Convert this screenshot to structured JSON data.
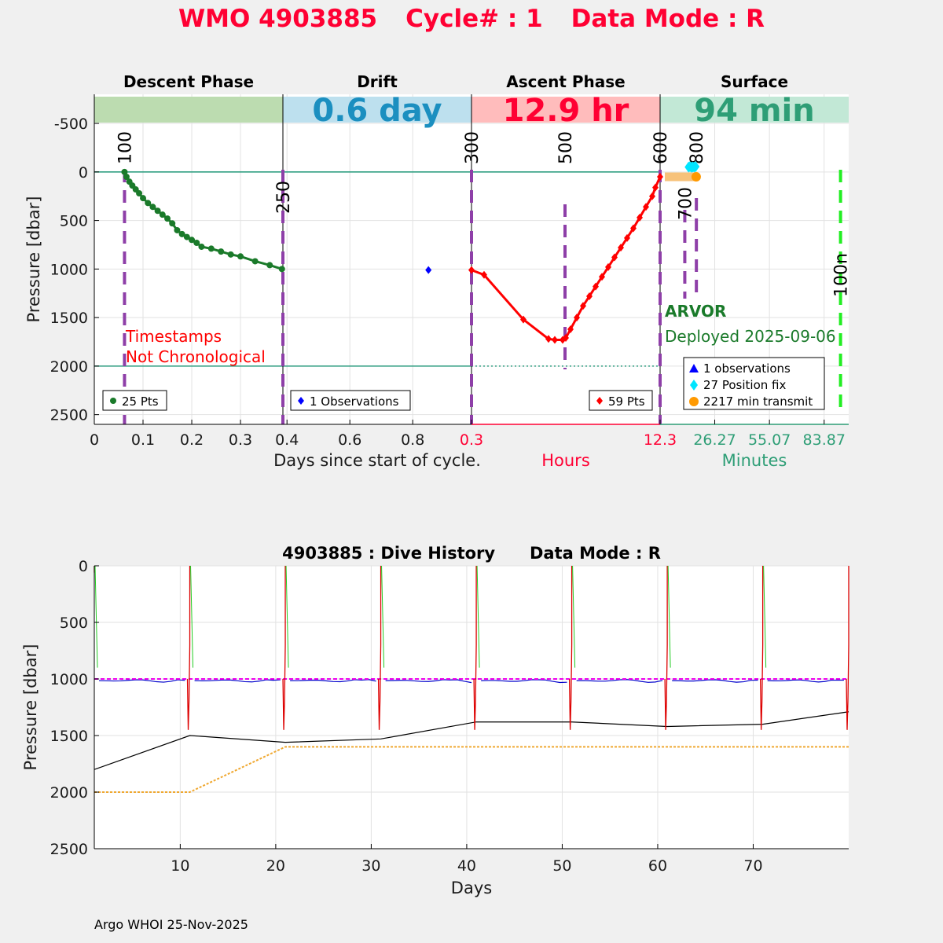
{
  "title": {
    "wmo": "WMO 4903885",
    "cycle": "Cycle# : 1",
    "mode": "Data Mode : R",
    "color": "#ff0033"
  },
  "footer": "Argo WHOI 25-Nov-2025",
  "chart_data": [
    {
      "type": "line",
      "name": "cycle-profile",
      "ylabel": "Pressure [dbar]",
      "ylim": [
        2600,
        -800
      ],
      "yticks": [
        -500,
        0,
        500,
        1000,
        1500,
        2000,
        2500
      ],
      "phases": {
        "descent": {
          "label": "Descent Phase",
          "color": "#bcdcb0",
          "xlabel": "Days since start of cycle.",
          "xticks": [
            "0",
            "0.1",
            "0.2",
            "0.3"
          ],
          "xlim": [
            0,
            0.387
          ],
          "xtick_values": [
            0,
            0.1,
            0.2,
            0.3
          ],
          "legend": "25 Pts",
          "series_color": "#1a7a2a",
          "points": [
            [
              0.062,
              0
            ],
            [
              0.066,
              50
            ],
            [
              0.072,
              100
            ],
            [
              0.078,
              140
            ],
            [
              0.085,
              180
            ],
            [
              0.092,
              220
            ],
            [
              0.1,
              270
            ],
            [
              0.11,
              320
            ],
            [
              0.12,
              360
            ],
            [
              0.13,
              400
            ],
            [
              0.14,
              440
            ],
            [
              0.15,
              480
            ],
            [
              0.16,
              530
            ],
            [
              0.17,
              600
            ],
            [
              0.18,
              640
            ],
            [
              0.19,
              670
            ],
            [
              0.2,
              700
            ],
            [
              0.21,
              730
            ],
            [
              0.22,
              770
            ],
            [
              0.24,
              790
            ],
            [
              0.26,
              820
            ],
            [
              0.28,
              850
            ],
            [
              0.3,
              870
            ],
            [
              0.33,
              920
            ],
            [
              0.36,
              960
            ],
            [
              0.385,
              1000
            ]
          ],
          "vlines": [
            {
              "x": 0.062,
              "label": "100"
            }
          ],
          "note": [
            "Timestamps",
            "Not Chronological"
          ],
          "note_color": "#ff0000"
        },
        "drift": {
          "label": "Drift",
          "color": "#bde0ee",
          "value": "0.6 day",
          "value_color": "#1b8fc0",
          "xticks": [
            "0.4",
            "0.6",
            "0.8"
          ],
          "xlim": [
            0.387,
            0.987
          ],
          "xtick_values": [
            0.4,
            0.6,
            0.8
          ],
          "legend": "1 Observations",
          "series_color": "#0000ff",
          "points": [
            [
              0.85,
              1010
            ]
          ],
          "vlines": [
            {
              "x": 0.387,
              "label": "250"
            }
          ]
        },
        "ascent": {
          "label": "Ascent Phase",
          "color": "#ffbcbc",
          "value": "12.9 hr",
          "value_color": "#ff0033",
          "xlabel": "Hours",
          "xlabel_color": "#ff0033",
          "xticks": [
            "0.3",
            "12.3"
          ],
          "xlim": [
            0.3,
            12.3
          ],
          "xtick_values": [
            0.3,
            12.3
          ],
          "legend": "59 Pts",
          "series_color": "#ff0000",
          "points": [
            [
              0.3,
              1010
            ],
            [
              1.1,
              1060
            ],
            [
              3.6,
              1520
            ],
            [
              5.2,
              1720
            ],
            [
              5.6,
              1730
            ],
            [
              6.1,
              1730
            ],
            [
              6.3,
              1710
            ],
            [
              6.6,
              1620
            ],
            [
              7.0,
              1500
            ],
            [
              7.4,
              1380
            ],
            [
              7.8,
              1280
            ],
            [
              8.2,
              1180
            ],
            [
              8.6,
              1080
            ],
            [
              9.0,
              980
            ],
            [
              9.4,
              880
            ],
            [
              9.8,
              780
            ],
            [
              10.2,
              680
            ],
            [
              10.6,
              580
            ],
            [
              11.0,
              470
            ],
            [
              11.4,
              360
            ],
            [
              11.8,
              250
            ],
            [
              12.0,
              160
            ],
            [
              12.3,
              50
            ]
          ],
          "vlines": [
            {
              "x": 0.3,
              "label": "300"
            },
            {
              "x": 6.25,
              "label": "500"
            },
            {
              "x": 12.3,
              "label": "600"
            }
          ]
        },
        "surface": {
          "label": "Surface",
          "color": "#c2e8d6",
          "value": "94 min",
          "value_color": "#2e9e76",
          "xlabel": "Minutes",
          "xlabel_color": "#2e9e76",
          "xticks": [
            "26.27",
            "55.07",
            "83.87"
          ],
          "xlim": [
            -2.5,
            96.8
          ],
          "xtick_values": [
            26.27,
            55.07,
            83.87
          ],
          "vlines": [
            {
              "x": 10.5,
              "label": "700"
            },
            {
              "x": 16.6,
              "label": "800"
            },
            {
              "x": 92.5,
              "label": "100n"
            }
          ],
          "float": "ARVOR",
          "deployed": "Deployed 2025-09-06",
          "float_color": "#1a7a2a",
          "legend": [
            {
              "label": "1 observations",
              "color": "#0000ff",
              "marker": "triangle"
            },
            {
              "label": "27 Position fix",
              "color": "#00e5ff",
              "marker": "diamond"
            },
            {
              "label": "2217 min transmit",
              "color": "#ff9900",
              "marker": "circle"
            }
          ],
          "transmit_bar": {
            "x0": 0,
            "x1": 16.5,
            "y": 50,
            "color": "#f7c27a"
          },
          "position_fixes": [
            [
              12.5,
              -50
            ],
            [
              13.2,
              -55
            ],
            [
              14.0,
              -48
            ],
            [
              14.7,
              -52
            ],
            [
              15.4,
              -50
            ],
            [
              16.2,
              -55
            ]
          ]
        }
      }
    },
    {
      "type": "line",
      "name": "dive-history",
      "title": "4903885 : Dive History      Data Mode : R",
      "xlabel": "Days",
      "ylabel": "Pressure [dbar]",
      "xlim": [
        1,
        80
      ],
      "ylim": [
        2500,
        0
      ],
      "xticks": [
        10,
        20,
        30,
        40,
        50,
        60,
        70
      ],
      "yticks": [
        0,
        500,
        1000,
        1500,
        2000,
        2500
      ],
      "park_pressure": 1000,
      "series": [
        {
          "name": "",
          "color": "#000000",
          "points": [
            [
              1,
              1800
            ],
            [
              11,
              1500
            ],
            [
              21,
              1560
            ],
            [
              31,
              1530
            ],
            [
              41,
              1380
            ],
            [
              51,
              1380
            ],
            [
              61,
              1420
            ],
            [
              71,
              1400
            ],
            [
              80,
              1290
            ]
          ]
        },
        {
          "name": "",
          "color": "#f0a830",
          "dashed": true,
          "points": [
            [
              1,
              2000
            ],
            [
              11,
              2000
            ],
            [
              21,
              1600
            ],
            [
              31,
              1600
            ],
            [
              41,
              1600
            ],
            [
              51,
              1600
            ],
            [
              61,
              1600
            ],
            [
              71,
              1600
            ],
            [
              80,
              1600
            ]
          ]
        }
      ],
      "cycle_days": [
        1,
        11,
        21,
        31,
        41,
        51,
        61,
        71,
        80
      ]
    }
  ]
}
